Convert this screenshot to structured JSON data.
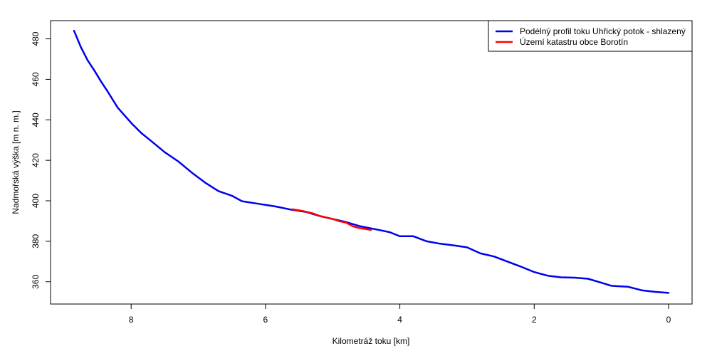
{
  "chart_data": {
    "type": "line",
    "title": "",
    "xlabel": "Kilometráž toku [km]",
    "ylabel": "Nadmořská výška [m n. m.]",
    "xlim": [
      9.2,
      -0.35
    ],
    "ylim": [
      349,
      489
    ],
    "x_reversed": true,
    "x_ticks": [
      8,
      6,
      4,
      2,
      0
    ],
    "x_tick_labels": [
      "8",
      "6",
      "4",
      "2",
      "0"
    ],
    "y_ticks": [
      360,
      380,
      400,
      420,
      440,
      460,
      480
    ],
    "y_tick_labels": [
      "360",
      "380",
      "400",
      "420",
      "440",
      "460",
      "480"
    ],
    "grid": false,
    "legend": {
      "position": "top-right"
    },
    "series": [
      {
        "name": "Podélný profil toku Uhřický potok - shlazený",
        "color": "#0000ee",
        "x": [
          8.85,
          8.75,
          8.65,
          8.55,
          8.45,
          8.35,
          8.2,
          8.0,
          7.85,
          7.7,
          7.5,
          7.3,
          7.1,
          6.9,
          6.7,
          6.5,
          6.35,
          6.1,
          5.85,
          5.6,
          5.4,
          5.2,
          5.0,
          4.8,
          4.6,
          4.45,
          4.3,
          4.15,
          4.0,
          3.8,
          3.6,
          3.4,
          3.2,
          3.0,
          2.8,
          2.6,
          2.4,
          2.2,
          2.0,
          1.8,
          1.6,
          1.4,
          1.2,
          1.0,
          0.85,
          0.75,
          0.6,
          0.4,
          0.2,
          0.0
        ],
        "y": [
          484,
          476,
          469.5,
          464.5,
          459,
          454,
          446,
          438.5,
          433.5,
          429.5,
          424,
          419.5,
          414,
          409,
          404.8,
          402.5,
          399.8,
          398.5,
          397.2,
          395.5,
          394.5,
          392.5,
          391,
          389.5,
          387.5,
          386.5,
          385.5,
          384.5,
          382.5,
          382.5,
          380,
          378.8,
          378,
          377,
          374,
          372.5,
          370,
          367.5,
          364.8,
          363,
          362.2,
          362,
          361.5,
          359.5,
          358,
          357.8,
          357.5,
          355.8,
          355,
          354.5
        ]
      },
      {
        "name": "Území katastru obce Borotín",
        "color": "#ff0000",
        "x": [
          5.6,
          5.45,
          5.3,
          5.2,
          5.1,
          5.0,
          4.9,
          4.8,
          4.7,
          4.6,
          4.5,
          4.43
        ],
        "y": [
          395.8,
          395.0,
          393.8,
          392.6,
          391.8,
          391.0,
          389.9,
          389.2,
          387.4,
          386.5,
          386.0,
          385.6
        ]
      }
    ]
  }
}
